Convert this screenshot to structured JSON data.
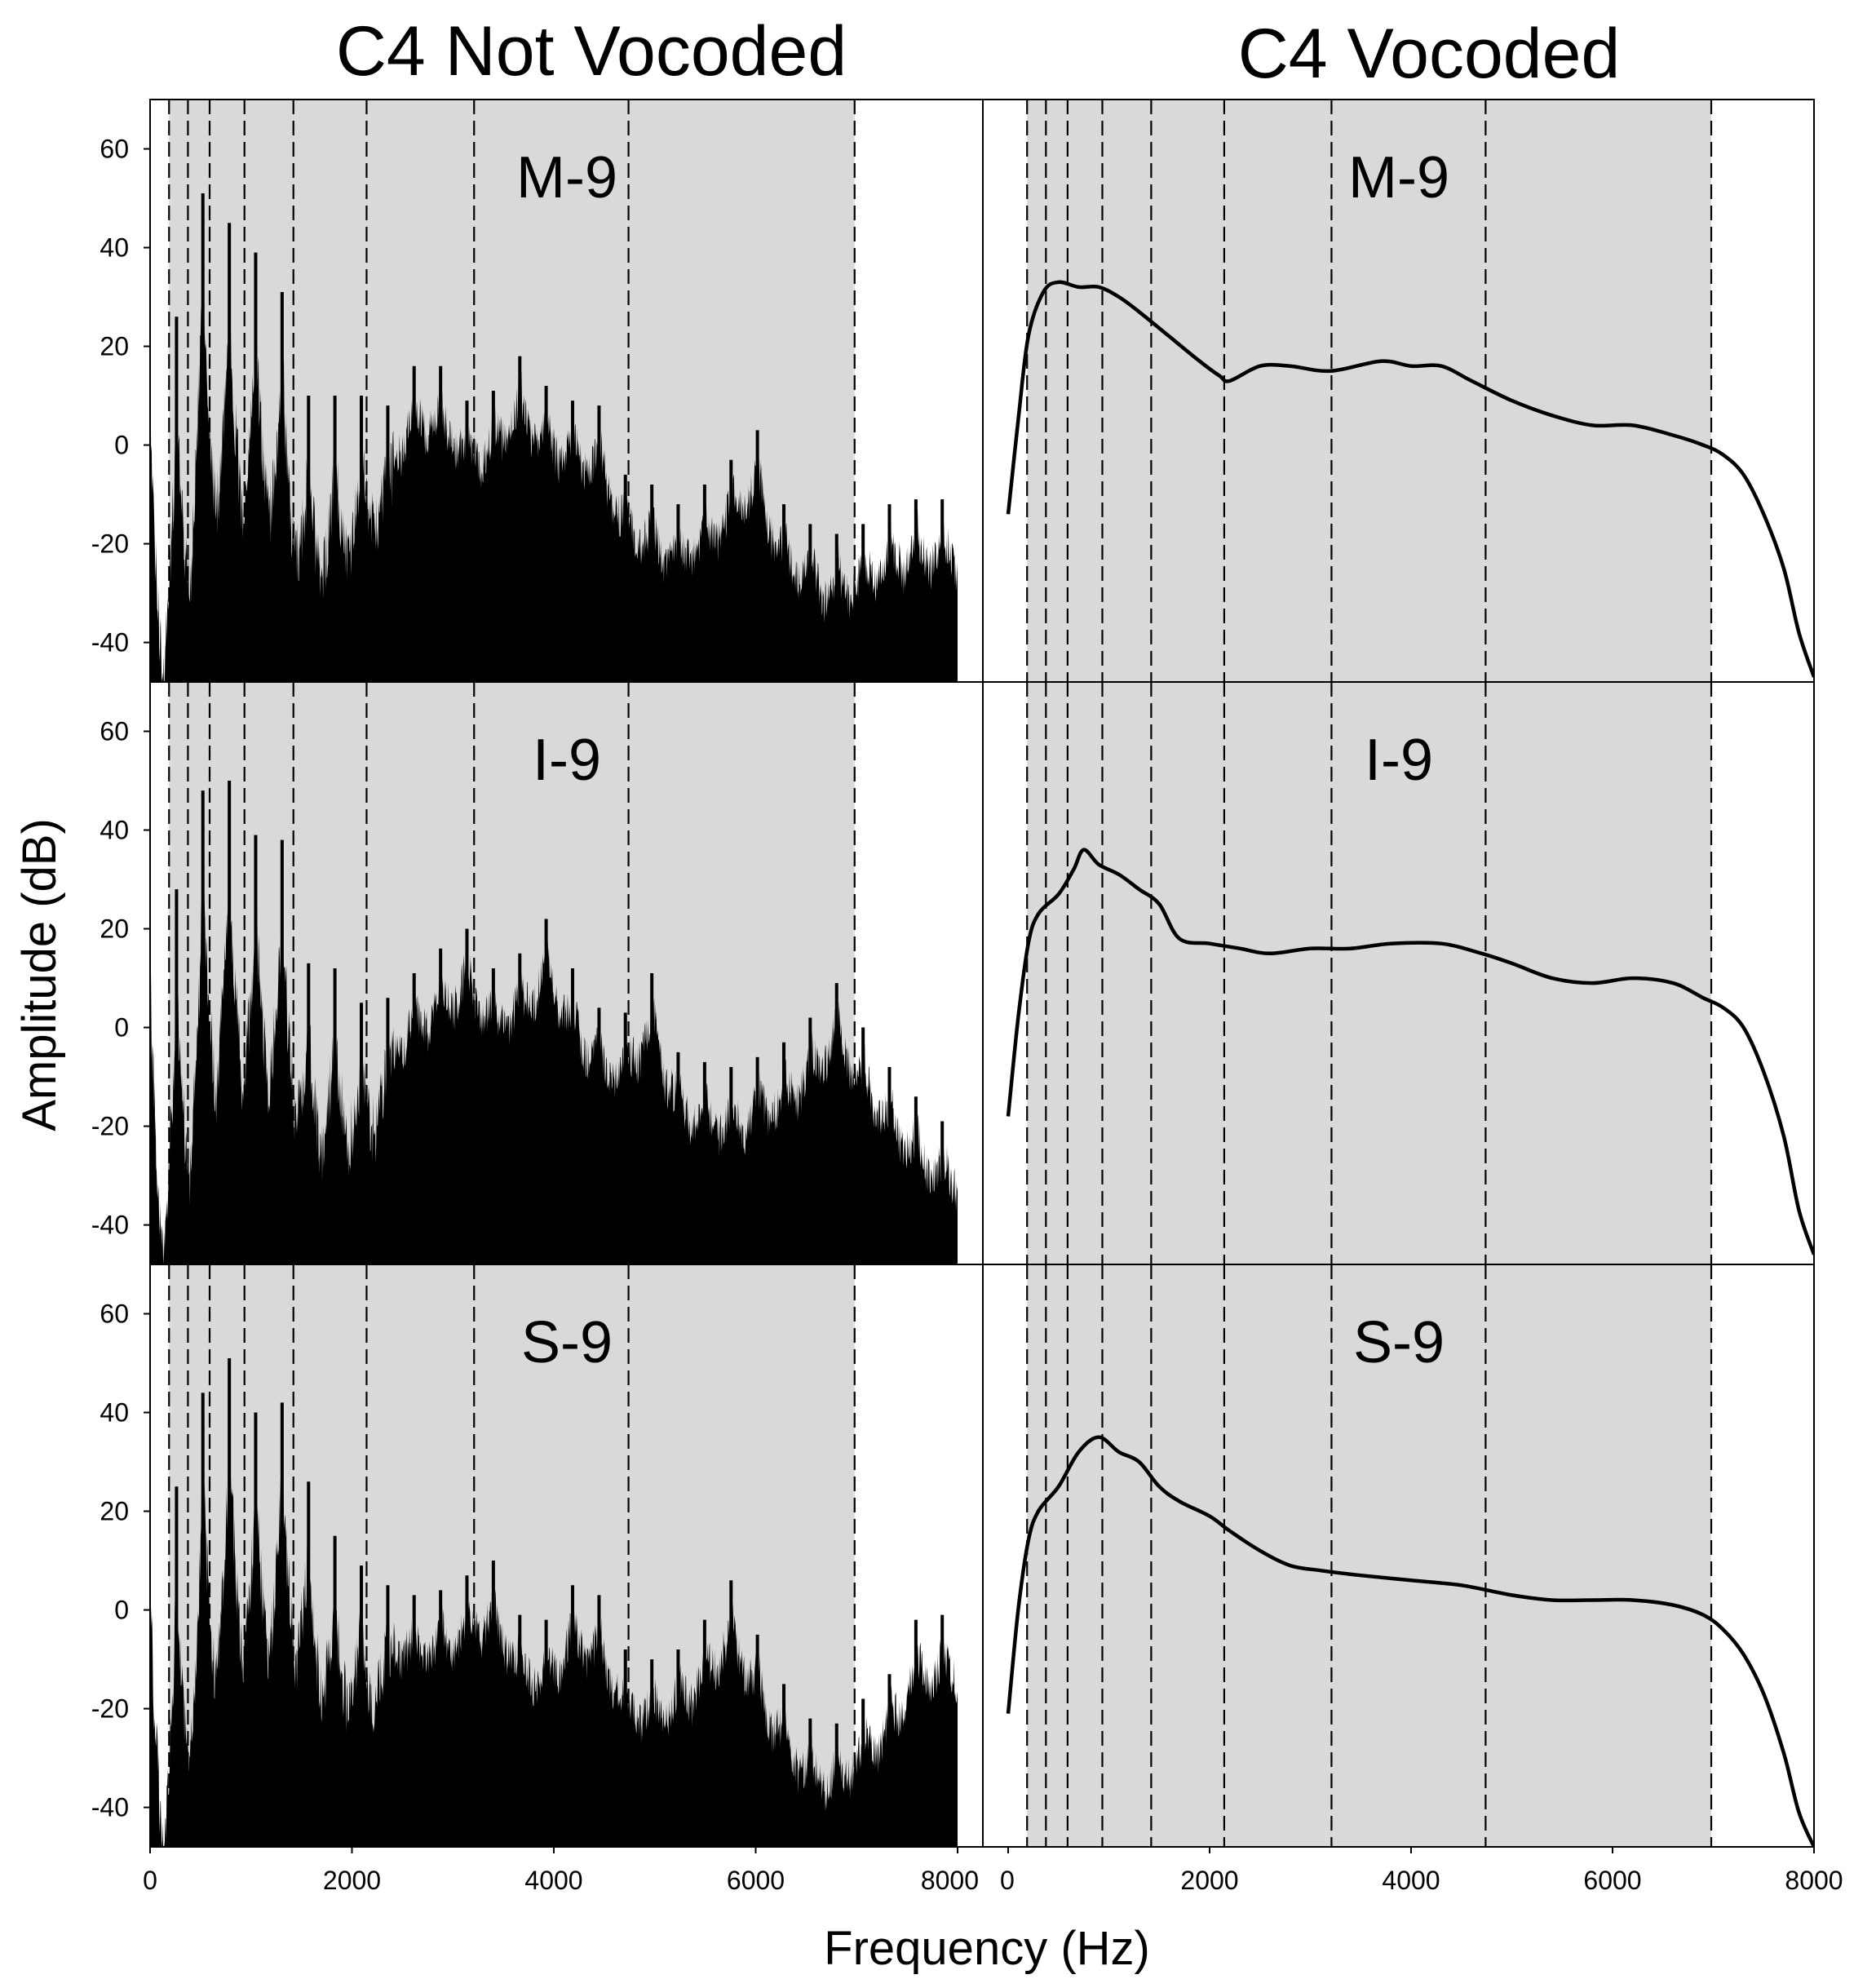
{
  "figure": {
    "left_title": "C4 Not Vocoded",
    "right_title": "C4 Vocoded",
    "ylabel": "Amplitude (dB)",
    "xlabel": "Frequency (Hz)"
  },
  "chart_data": [
    {
      "type": "area",
      "title": "C4 Not Vocoded",
      "xlabel": "Frequency (Hz)",
      "ylabel": "Amplitude (dB)",
      "xlim": [
        0,
        8000
      ],
      "ylim": [
        -48,
        70
      ],
      "xticks": [
        0,
        2000,
        4000,
        6000,
        8000
      ],
      "yticks": [
        -40,
        -20,
        0,
        20,
        40,
        60
      ],
      "grid": false,
      "shaded_band_hz": [
        188,
        6980
      ],
      "band_edges_hz": [
        188,
        375,
        590,
        935,
        1420,
        2145,
        3210,
        4740,
        6980
      ],
      "harmonic_spacing_hz": 262,
      "series": [
        {
          "panel": "M-9",
          "peaks": [
            {
              "x": 262,
              "y": 26
            },
            {
              "x": 523,
              "y": 51
            },
            {
              "x": 785,
              "y": 45
            },
            {
              "x": 1046,
              "y": 39
            },
            {
              "x": 1308,
              "y": 31
            },
            {
              "x": 1570,
              "y": 10
            },
            {
              "x": 1831,
              "y": 10
            },
            {
              "x": 2093,
              "y": 10
            },
            {
              "x": 2355,
              "y": 8
            },
            {
              "x": 2616,
              "y": 16
            },
            {
              "x": 2878,
              "y": 16
            },
            {
              "x": 3139,
              "y": 9
            },
            {
              "x": 3401,
              "y": 11
            },
            {
              "x": 3663,
              "y": 18
            },
            {
              "x": 3924,
              "y": 12
            },
            {
              "x": 4186,
              "y": 9
            },
            {
              "x": 4448,
              "y": 8
            },
            {
              "x": 4709,
              "y": -6
            },
            {
              "x": 4971,
              "y": -8
            },
            {
              "x": 5232,
              "y": -12
            },
            {
              "x": 5494,
              "y": -8
            },
            {
              "x": 5756,
              "y": -3
            },
            {
              "x": 6017,
              "y": 3
            },
            {
              "x": 6279,
              "y": -12
            },
            {
              "x": 6540,
              "y": -16
            },
            {
              "x": 6802,
              "y": -18
            },
            {
              "x": 7064,
              "y": -16
            },
            {
              "x": 7325,
              "y": -12
            },
            {
              "x": 7587,
              "y": -11
            },
            {
              "x": 7848,
              "y": -11
            }
          ]
        },
        {
          "panel": "I-9",
          "peaks": [
            {
              "x": 262,
              "y": 28
            },
            {
              "x": 523,
              "y": 48
            },
            {
              "x": 785,
              "y": 50
            },
            {
              "x": 1046,
              "y": 39
            },
            {
              "x": 1308,
              "y": 38
            },
            {
              "x": 1570,
              "y": 13
            },
            {
              "x": 1831,
              "y": 12
            },
            {
              "x": 2093,
              "y": 5
            },
            {
              "x": 2355,
              "y": 6
            },
            {
              "x": 2616,
              "y": 11
            },
            {
              "x": 2878,
              "y": 16
            },
            {
              "x": 3139,
              "y": 20
            },
            {
              "x": 3401,
              "y": 12
            },
            {
              "x": 3663,
              "y": 15
            },
            {
              "x": 3924,
              "y": 22
            },
            {
              "x": 4186,
              "y": 12
            },
            {
              "x": 4448,
              "y": 4
            },
            {
              "x": 4709,
              "y": 3
            },
            {
              "x": 4971,
              "y": 11
            },
            {
              "x": 5232,
              "y": -5
            },
            {
              "x": 5494,
              "y": -7
            },
            {
              "x": 5756,
              "y": -8
            },
            {
              "x": 6017,
              "y": -6
            },
            {
              "x": 6279,
              "y": -3
            },
            {
              "x": 6540,
              "y": 2
            },
            {
              "x": 6802,
              "y": 9
            },
            {
              "x": 7064,
              "y": 0
            },
            {
              "x": 7325,
              "y": -8
            },
            {
              "x": 7587,
              "y": -14
            },
            {
              "x": 7848,
              "y": -19
            }
          ]
        },
        {
          "panel": "S-9",
          "peaks": [
            {
              "x": 262,
              "y": 25
            },
            {
              "x": 523,
              "y": 44
            },
            {
              "x": 785,
              "y": 51
            },
            {
              "x": 1046,
              "y": 40
            },
            {
              "x": 1308,
              "y": 42
            },
            {
              "x": 1570,
              "y": 26
            },
            {
              "x": 1831,
              "y": 15
            },
            {
              "x": 2093,
              "y": 9
            },
            {
              "x": 2355,
              "y": 5
            },
            {
              "x": 2616,
              "y": 3
            },
            {
              "x": 2878,
              "y": 4
            },
            {
              "x": 3139,
              "y": 7
            },
            {
              "x": 3401,
              "y": 10
            },
            {
              "x": 3663,
              "y": -1
            },
            {
              "x": 3924,
              "y": -2
            },
            {
              "x": 4186,
              "y": 5
            },
            {
              "x": 4448,
              "y": 3
            },
            {
              "x": 4709,
              "y": -8
            },
            {
              "x": 4971,
              "y": -10
            },
            {
              "x": 5232,
              "y": -8
            },
            {
              "x": 5494,
              "y": -2
            },
            {
              "x": 5756,
              "y": 6
            },
            {
              "x": 6017,
              "y": -5
            },
            {
              "x": 6279,
              "y": -15
            },
            {
              "x": 6540,
              "y": -22
            },
            {
              "x": 6802,
              "y": -23
            },
            {
              "x": 7064,
              "y": -18
            },
            {
              "x": 7325,
              "y": -13
            },
            {
              "x": 7587,
              "y": -2
            },
            {
              "x": 7848,
              "y": -1
            }
          ]
        }
      ]
    },
    {
      "type": "line",
      "title": "C4 Vocoded",
      "xlabel": "Frequency (Hz)",
      "ylabel": "Amplitude (dB)",
      "xlim": [
        0,
        8000
      ],
      "ylim": [
        -48,
        70
      ],
      "xticks": [
        0,
        2000,
        4000,
        6000,
        8000
      ],
      "yticks": [
        -40,
        -20,
        0,
        20,
        40,
        60
      ],
      "grid": false,
      "shaded_band_hz": [
        188,
        6980
      ],
      "band_edges_hz": [
        188,
        375,
        590,
        935,
        1420,
        2145,
        3210,
        4740,
        6980
      ],
      "series": [
        {
          "panel": "M-9",
          "points": [
            {
              "x": 0,
              "y": -14
            },
            {
              "x": 100,
              "y": 5
            },
            {
              "x": 200,
              "y": 22
            },
            {
              "x": 350,
              "y": 31
            },
            {
              "x": 500,
              "y": 33
            },
            {
              "x": 700,
              "y": 32
            },
            {
              "x": 900,
              "y": 32
            },
            {
              "x": 1100,
              "y": 30
            },
            {
              "x": 1300,
              "y": 27
            },
            {
              "x": 1600,
              "y": 22
            },
            {
              "x": 1900,
              "y": 17
            },
            {
              "x": 2100,
              "y": 14
            },
            {
              "x": 2200,
              "y": 13
            },
            {
              "x": 2500,
              "y": 16
            },
            {
              "x": 2800,
              "y": 16
            },
            {
              "x": 3200,
              "y": 15
            },
            {
              "x": 3700,
              "y": 17
            },
            {
              "x": 4000,
              "y": 16
            },
            {
              "x": 4300,
              "y": 16
            },
            {
              "x": 4600,
              "y": 13
            },
            {
              "x": 5000,
              "y": 9
            },
            {
              "x": 5400,
              "y": 6
            },
            {
              "x": 5800,
              "y": 4
            },
            {
              "x": 6200,
              "y": 4
            },
            {
              "x": 6600,
              "y": 2
            },
            {
              "x": 6900,
              "y": 0
            },
            {
              "x": 7100,
              "y": -2
            },
            {
              "x": 7300,
              "y": -6
            },
            {
              "x": 7500,
              "y": -14
            },
            {
              "x": 7700,
              "y": -25
            },
            {
              "x": 7850,
              "y": -38
            },
            {
              "x": 8000,
              "y": -47
            }
          ]
        },
        {
          "panel": "I-9",
          "points": [
            {
              "x": 0,
              "y": -18
            },
            {
              "x": 100,
              "y": 2
            },
            {
              "x": 200,
              "y": 17
            },
            {
              "x": 300,
              "y": 23
            },
            {
              "x": 500,
              "y": 27
            },
            {
              "x": 650,
              "y": 32
            },
            {
              "x": 750,
              "y": 36
            },
            {
              "x": 900,
              "y": 33
            },
            {
              "x": 1100,
              "y": 31
            },
            {
              "x": 1300,
              "y": 28
            },
            {
              "x": 1500,
              "y": 25
            },
            {
              "x": 1700,
              "y": 18
            },
            {
              "x": 2000,
              "y": 17
            },
            {
              "x": 2300,
              "y": 16
            },
            {
              "x": 2600,
              "y": 15
            },
            {
              "x": 3000,
              "y": 16
            },
            {
              "x": 3400,
              "y": 16
            },
            {
              "x": 3800,
              "y": 17
            },
            {
              "x": 4300,
              "y": 17
            },
            {
              "x": 4700,
              "y": 15
            },
            {
              "x": 5000,
              "y": 13
            },
            {
              "x": 5400,
              "y": 10
            },
            {
              "x": 5800,
              "y": 9
            },
            {
              "x": 6200,
              "y": 10
            },
            {
              "x": 6600,
              "y": 9
            },
            {
              "x": 6900,
              "y": 6
            },
            {
              "x": 7100,
              "y": 4
            },
            {
              "x": 7300,
              "y": 0
            },
            {
              "x": 7500,
              "y": -9
            },
            {
              "x": 7700,
              "y": -22
            },
            {
              "x": 7850,
              "y": -37
            },
            {
              "x": 8000,
              "y": -46
            }
          ]
        },
        {
          "panel": "S-9",
          "points": [
            {
              "x": 0,
              "y": -21
            },
            {
              "x": 100,
              "y": 0
            },
            {
              "x": 200,
              "y": 14
            },
            {
              "x": 300,
              "y": 20
            },
            {
              "x": 500,
              "y": 25
            },
            {
              "x": 700,
              "y": 32
            },
            {
              "x": 900,
              "y": 35
            },
            {
              "x": 1100,
              "y": 32
            },
            {
              "x": 1300,
              "y": 30
            },
            {
              "x": 1500,
              "y": 25
            },
            {
              "x": 1700,
              "y": 22
            },
            {
              "x": 2000,
              "y": 19
            },
            {
              "x": 2200,
              "y": 16
            },
            {
              "x": 2500,
              "y": 12
            },
            {
              "x": 2800,
              "y": 9
            },
            {
              "x": 3100,
              "y": 8
            },
            {
              "x": 3500,
              "y": 7
            },
            {
              "x": 4000,
              "y": 6
            },
            {
              "x": 4500,
              "y": 5
            },
            {
              "x": 5000,
              "y": 3
            },
            {
              "x": 5400,
              "y": 2
            },
            {
              "x": 5800,
              "y": 2
            },
            {
              "x": 6200,
              "y": 2
            },
            {
              "x": 6600,
              "y": 1
            },
            {
              "x": 6900,
              "y": -1
            },
            {
              "x": 7100,
              "y": -4
            },
            {
              "x": 7300,
              "y": -9
            },
            {
              "x": 7500,
              "y": -17
            },
            {
              "x": 7700,
              "y": -29
            },
            {
              "x": 7850,
              "y": -41
            },
            {
              "x": 8000,
              "y": -48
            }
          ]
        }
      ]
    }
  ],
  "colors": {
    "shade": "#d9d9d9",
    "ink": "#000000",
    "background": "#ffffff"
  }
}
